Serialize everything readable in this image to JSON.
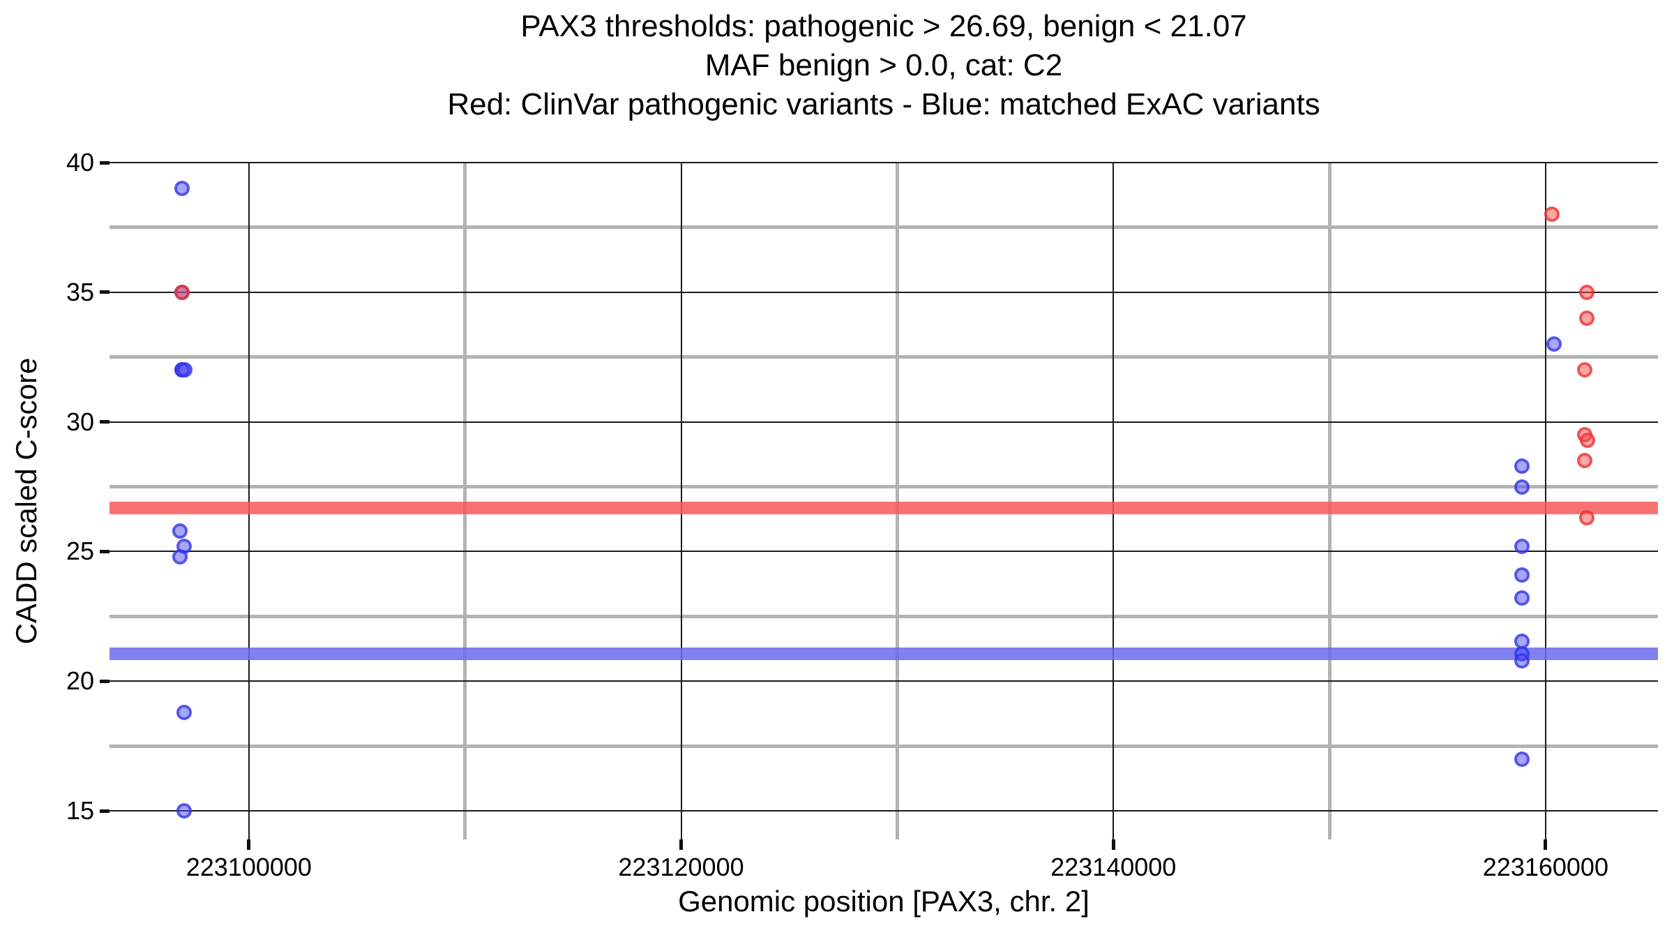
{
  "title_lines": [
    "PAX3 thresholds: pathogenic > 26.69, benign < 21.07",
    "MAF benign > 0.0, cat: C2",
    "Red: ClinVar pathogenic variants - Blue: matched ExAC variants"
  ],
  "chart_data": {
    "type": "scatter",
    "title": "PAX3 thresholds: pathogenic > 26.69, benign < 21.07 / MAF benign > 0.0, cat: C2",
    "xlabel": "Genomic position [PAX3, chr. 2]",
    "ylabel": "CADD scaled C-score",
    "xlim": [
      223093550,
      223165200
    ],
    "ylim": [
      13.9,
      40
    ],
    "x_ticks": [
      223100000,
      223120000,
      223140000,
      223160000
    ],
    "x_minor_ticks": [
      223110000,
      223130000,
      223150000
    ],
    "y_ticks": [
      15,
      20,
      25,
      30,
      35,
      40
    ],
    "y_minor_ticks": [
      17.5,
      22.5,
      27.5,
      32.5,
      37.5
    ],
    "grid": {
      "major_color": "#1a1a1a",
      "minor_color": "#b3b3b3"
    },
    "legend_position": "none",
    "thresholds": [
      {
        "name": "pathogenic",
        "value": 26.69,
        "color": "rgba(246,91,91,0.85)"
      },
      {
        "name": "benign",
        "value": 21.07,
        "color": "rgba(106,106,238,0.85)"
      }
    ],
    "series": [
      {
        "name": "matched ExAC variants",
        "color_fill": "rgba(80,80,245,0.50)",
        "color_stroke": "rgba(48,48,232,0.70)",
        "points": [
          [
            223096900,
            39.0
          ],
          [
            223096900,
            35.0
          ],
          [
            223096900,
            32.0
          ],
          [
            223096900,
            32.0
          ],
          [
            223097050,
            32.0
          ],
          [
            223096800,
            25.8
          ],
          [
            223097000,
            25.2
          ],
          [
            223096800,
            24.8
          ],
          [
            223097000,
            18.8
          ],
          [
            223097000,
            15.0
          ],
          [
            223160400,
            33.0
          ],
          [
            223158900,
            28.3
          ],
          [
            223158900,
            27.5
          ],
          [
            223158900,
            25.2
          ],
          [
            223158900,
            24.1
          ],
          [
            223158900,
            23.2
          ],
          [
            223158900,
            21.55
          ],
          [
            223158900,
            21.05
          ],
          [
            223158900,
            20.8
          ],
          [
            223158900,
            17.0
          ]
        ]
      },
      {
        "name": "ClinVar pathogenic variants",
        "color_fill": "rgba(248,80,80,0.50)",
        "color_stroke": "rgba(235,45,45,0.70)",
        "points": [
          [
            223096900,
            35.0
          ],
          [
            223160300,
            38.0
          ],
          [
            223161900,
            35.0
          ],
          [
            223161900,
            34.0
          ],
          [
            223161800,
            32.0
          ],
          [
            223161800,
            29.5
          ],
          [
            223161950,
            29.3
          ],
          [
            223161800,
            28.5
          ],
          [
            223161900,
            26.3
          ]
        ]
      }
    ]
  }
}
